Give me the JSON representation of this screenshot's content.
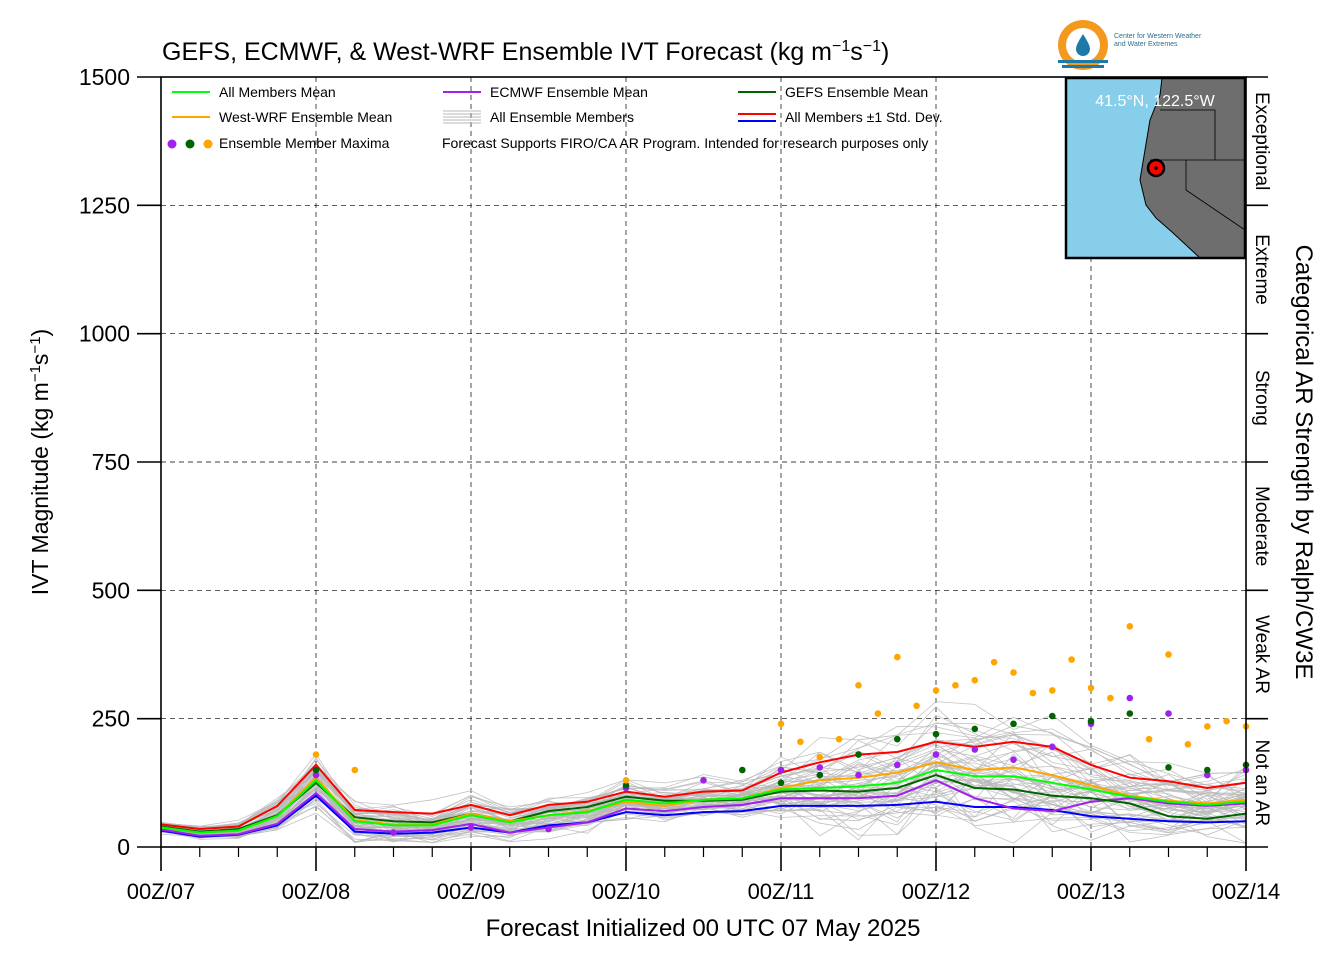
{
  "title": "GEFS, ECMWF, & West-WRF Ensemble IVT Forecast (kg m",
  "title_units": {
    "exp1": "−1",
    "s": "s",
    "exp2": "−1",
    "close": ")"
  },
  "xlabel": "Forecast Initialized 00 UTC 07 May 2025",
  "ylabel": "IVT Magnitude (kg m",
  "ylabel_units": {
    "exp1": "−1",
    "s": "s",
    "exp2": "−1",
    "close": ")"
  },
  "right_label": "Categorical AR Strength by Ralph/CW3E",
  "logo": {
    "line1": "Center for Western Weather",
    "line2": "and Water Extremes"
  },
  "inset": {
    "location": "41.5°N, 122.5°W"
  },
  "categories": [
    {
      "label": "Not an AR"
    },
    {
      "label": "Weak AR"
    },
    {
      "label": "Moderate"
    },
    {
      "label": "Strong"
    },
    {
      "label": "Extreme"
    },
    {
      "label": "Exceptional"
    }
  ],
  "legend": {
    "all_mean": "All Members Mean",
    "ecmwf_mean": "ECMWF Ensemble Mean",
    "gefs_mean": "GEFS Ensemble Mean",
    "wrf_mean": "West-WRF Ensemble Mean",
    "all_members": "All Ensemble Members",
    "std": "All Members ±1 Std. Dev.",
    "maxima": "Ensemble Member Maxima",
    "note": "Forecast Supports FIRO/CA AR Program. Intended for research purposes only"
  },
  "colors": {
    "all_mean": "#00ff00",
    "ecmwf_mean": "#a020f0",
    "gefs_mean": "#006400",
    "wrf_mean": "#ffa500",
    "members": "#b8b8b8",
    "std_upper": "#ff0000",
    "std_lower": "#0000ff",
    "map_water": "#87ceeb",
    "map_land": "#6e6e6e"
  },
  "chart_data": {
    "type": "line",
    "x_ticks": [
      "00Z/07",
      "00Z/08",
      "00Z/09",
      "00Z/10",
      "00Z/11",
      "00Z/12",
      "00Z/13",
      "00Z/14"
    ],
    "x_unit": "forecast hours since 00 UTC 07 May 2025",
    "xlim": [
      0,
      168
    ],
    "ylim": [
      0,
      1500
    ],
    "y_ticks": [
      0,
      250,
      500,
      750,
      1000,
      1250,
      1500
    ],
    "category_bounds": [
      0,
      250,
      500,
      750,
      1000,
      1250,
      1500
    ],
    "grid": true,
    "series": [
      {
        "name": "All Members Mean",
        "key": "all_mean",
        "x": [
          0,
          6,
          12,
          18,
          24,
          30,
          36,
          42,
          48,
          54,
          60,
          66,
          72,
          78,
          84,
          90,
          96,
          102,
          108,
          114,
          120,
          126,
          132,
          138,
          144,
          150,
          156,
          162,
          168
        ],
        "values": [
          38,
          28,
          32,
          60,
          130,
          50,
          42,
          42,
          62,
          48,
          62,
          68,
          92,
          85,
          92,
          95,
          112,
          115,
          118,
          125,
          150,
          138,
          138,
          125,
          112,
          98,
          88,
          82,
          88
        ]
      },
      {
        "name": "ECMWF Ensemble Mean",
        "key": "ecmwf_mean",
        "x": [
          0,
          6,
          12,
          18,
          24,
          30,
          36,
          42,
          48,
          54,
          60,
          66,
          72,
          78,
          84,
          90,
          96,
          102,
          108,
          114,
          120,
          126,
          132,
          138,
          144,
          150,
          156,
          162,
          168
        ],
        "values": [
          34,
          22,
          25,
          45,
          105,
          35,
          30,
          33,
          45,
          28,
          38,
          48,
          75,
          70,
          78,
          82,
          95,
          95,
          95,
          100,
          130,
          95,
          75,
          70,
          88,
          95,
          85,
          80,
          85
        ]
      },
      {
        "name": "GEFS Ensemble Mean",
        "key": "gefs_mean",
        "x": [
          0,
          6,
          12,
          18,
          24,
          30,
          36,
          42,
          48,
          54,
          60,
          66,
          72,
          78,
          84,
          90,
          96,
          102,
          108,
          114,
          120,
          126,
          132,
          138,
          144,
          150,
          156,
          162,
          168
        ],
        "values": [
          40,
          30,
          35,
          62,
          125,
          58,
          50,
          48,
          65,
          50,
          70,
          78,
          98,
          90,
          90,
          92,
          108,
          110,
          108,
          115,
          140,
          115,
          112,
          100,
          95,
          85,
          60,
          55,
          65
        ]
      },
      {
        "name": "West-WRF Ensemble Mean",
        "key": "wrf_mean",
        "x": [
          0,
          6,
          12,
          18,
          24,
          30,
          36,
          42,
          48,
          54,
          60,
          66,
          72,
          78,
          84,
          90,
          96,
          102,
          108,
          114,
          120,
          126,
          132,
          138,
          144,
          150,
          156,
          162,
          168
        ],
        "values": [
          38,
          28,
          32,
          60,
          135,
          52,
          44,
          44,
          65,
          50,
          62,
          70,
          88,
          80,
          92,
          95,
          115,
          130,
          135,
          145,
          165,
          150,
          155,
          140,
          120,
          100,
          90,
          85,
          92
        ]
      },
      {
        "name": "All Members ±1 Std. Dev.",
        "key": "std_upper",
        "x": [
          0,
          6,
          12,
          18,
          24,
          30,
          36,
          42,
          48,
          54,
          60,
          66,
          72,
          78,
          84,
          90,
          96,
          102,
          108,
          114,
          120,
          126,
          132,
          138,
          144,
          150,
          156,
          162,
          168
        ],
        "values": [
          44,
          35,
          40,
          80,
          160,
          72,
          68,
          65,
          82,
          62,
          82,
          88,
          108,
          98,
          108,
          110,
          145,
          165,
          180,
          185,
          205,
          195,
          205,
          195,
          160,
          135,
          128,
          115,
          125
        ]
      },
      {
        "name": "All Members -1 Std. Dev.",
        "key": "std_lower",
        "x": [
          0,
          6,
          12,
          18,
          24,
          30,
          36,
          42,
          48,
          54,
          60,
          66,
          72,
          78,
          84,
          90,
          96,
          102,
          108,
          114,
          120,
          126,
          132,
          138,
          144,
          150,
          156,
          162,
          168
        ],
        "values": [
          32,
          20,
          24,
          42,
          100,
          30,
          26,
          28,
          38,
          28,
          42,
          48,
          68,
          62,
          68,
          70,
          80,
          80,
          80,
          82,
          88,
          78,
          78,
          72,
          60,
          55,
          50,
          48,
          50
        ]
      }
    ],
    "maxima": [
      {
        "group": "ECMWF",
        "points": [
          [
            24,
            140
          ],
          [
            36,
            28
          ],
          [
            48,
            38
          ],
          [
            60,
            35
          ],
          [
            72,
            115
          ],
          [
            84,
            130
          ],
          [
            96,
            150
          ],
          [
            102,
            155
          ],
          [
            108,
            140
          ],
          [
            114,
            160
          ],
          [
            120,
            180
          ],
          [
            126,
            190
          ],
          [
            132,
            170
          ],
          [
            138,
            195
          ],
          [
            144,
            240
          ],
          [
            150,
            290
          ],
          [
            156,
            260
          ],
          [
            162,
            140
          ],
          [
            168,
            150
          ]
        ]
      },
      {
        "group": "GEFS",
        "points": [
          [
            24,
            150
          ],
          [
            72,
            120
          ],
          [
            90,
            150
          ],
          [
            96,
            125
          ],
          [
            102,
            140
          ],
          [
            108,
            180
          ],
          [
            114,
            210
          ],
          [
            120,
            220
          ],
          [
            126,
            230
          ],
          [
            132,
            240
          ],
          [
            138,
            255
          ],
          [
            144,
            245
          ],
          [
            150,
            260
          ],
          [
            156,
            155
          ],
          [
            162,
            150
          ],
          [
            168,
            160
          ]
        ]
      },
      {
        "group": "West-WRF",
        "points": [
          [
            24,
            180
          ],
          [
            30,
            150
          ],
          [
            72,
            130
          ],
          [
            96,
            240
          ],
          [
            99,
            205
          ],
          [
            102,
            175
          ],
          [
            105,
            210
          ],
          [
            108,
            315
          ],
          [
            111,
            260
          ],
          [
            114,
            370
          ],
          [
            117,
            275
          ],
          [
            120,
            305
          ],
          [
            123,
            315
          ],
          [
            126,
            325
          ],
          [
            129,
            360
          ],
          [
            132,
            340
          ],
          [
            135,
            300
          ],
          [
            138,
            305
          ],
          [
            141,
            365
          ],
          [
            144,
            310
          ],
          [
            147,
            290
          ],
          [
            150,
            430
          ],
          [
            153,
            210
          ],
          [
            156,
            375
          ],
          [
            159,
            200
          ],
          [
            162,
            235
          ],
          [
            165,
            245
          ],
          [
            168,
            235
          ]
        ]
      }
    ]
  }
}
